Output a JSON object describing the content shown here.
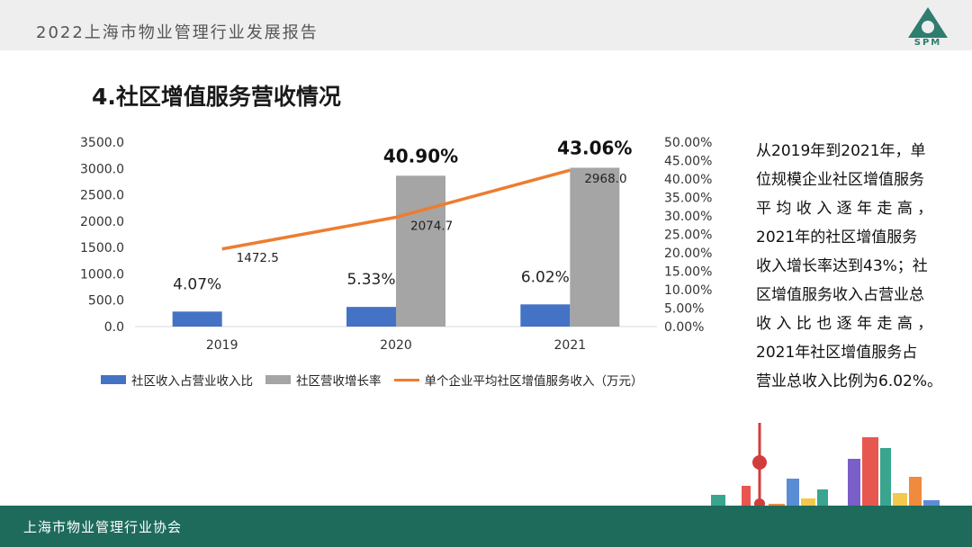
{
  "header": {
    "report_title": "2022上海市物业管理行业发展报告",
    "logo_text": "SPM"
  },
  "section_heading": "4.社区增值服务营收情况",
  "colors": {
    "bar_share": "#4472c4",
    "bar_growth": "#a5a5a5",
    "line_income": "#ed7d31",
    "footer_band": "#1e6b5c"
  },
  "chart_data": {
    "type": "bar",
    "categories": [
      "2019",
      "2020",
      "2021"
    ],
    "y_left_ticks": [
      "3500.0",
      "3000.0",
      "2500.0",
      "2000.0",
      "1500.0",
      "1000.0",
      "500.0",
      "0.0"
    ],
    "y_right_ticks": [
      "50.00%",
      "45.00%",
      "40.00%",
      "35.00%",
      "30.00%",
      "25.00%",
      "20.00%",
      "15.00%",
      "10.00%",
      "5.00%",
      "0.00%"
    ],
    "y_left_range": [
      0,
      3500
    ],
    "y_right_range": [
      0,
      50
    ],
    "series": [
      {
        "name": "社区收入占营业收入比",
        "kind": "bar",
        "axis": "right",
        "values": [
          4.07,
          5.33,
          6.02
        ],
        "labels": [
          "4.07%",
          "5.33%",
          "6.02%"
        ]
      },
      {
        "name": "社区营收增长率",
        "kind": "bar",
        "axis": "right",
        "values": [
          null,
          40.9,
          43.06
        ],
        "labels": [
          "",
          "40.90%",
          "43.06%"
        ]
      },
      {
        "name": "单个企业平均社区增值服务收入（万元）",
        "kind": "line",
        "axis": "left",
        "values": [
          1472.5,
          2074.7,
          2968.0
        ],
        "labels": [
          "1472.5",
          "2074.7",
          "2968.0"
        ]
      }
    ],
    "grid": false,
    "legend_position": "bottom"
  },
  "side_text": "从2019年到2021年，单\n位规模企业社区增值服务\n平 均 收 入 逐 年 走 高 ，\n2021年的社区增值服务\n收入增长率达到43%；社\n区增值服务收入占营业总\n收 入 比 也 逐 年 走 高 ，\n2021年社区增值服务占\n营业总收入比例为6.02%。",
  "footer": {
    "org_name": "上海市物业管理行业协会"
  }
}
